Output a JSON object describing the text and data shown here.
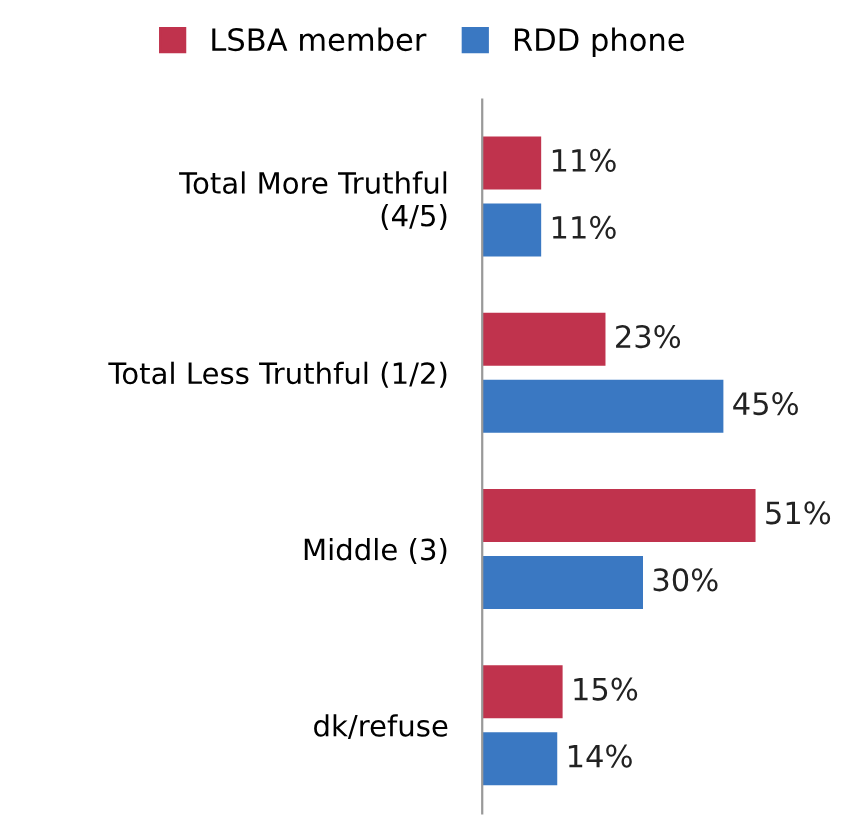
{
  "chart_data": {
    "type": "bar",
    "orientation": "horizontal",
    "categories": [
      "Total More Truthful\n(4/5)",
      "Total Less Truthful (1/2)",
      "Middle (3)",
      "dk/refuse"
    ],
    "series": [
      {
        "name": "LSBA member",
        "color": "#c0334d",
        "values": [
          11,
          23,
          51,
          15
        ],
        "value_labels": [
          "11%",
          "23%",
          "51%",
          "15%"
        ]
      },
      {
        "name": "RDD phone",
        "color": "#3a78c2",
        "values": [
          11,
          45,
          30,
          14
        ],
        "value_labels": [
          "11%",
          "45%",
          "30%",
          "14%"
        ]
      }
    ],
    "legend": "top",
    "grid": false
  }
}
